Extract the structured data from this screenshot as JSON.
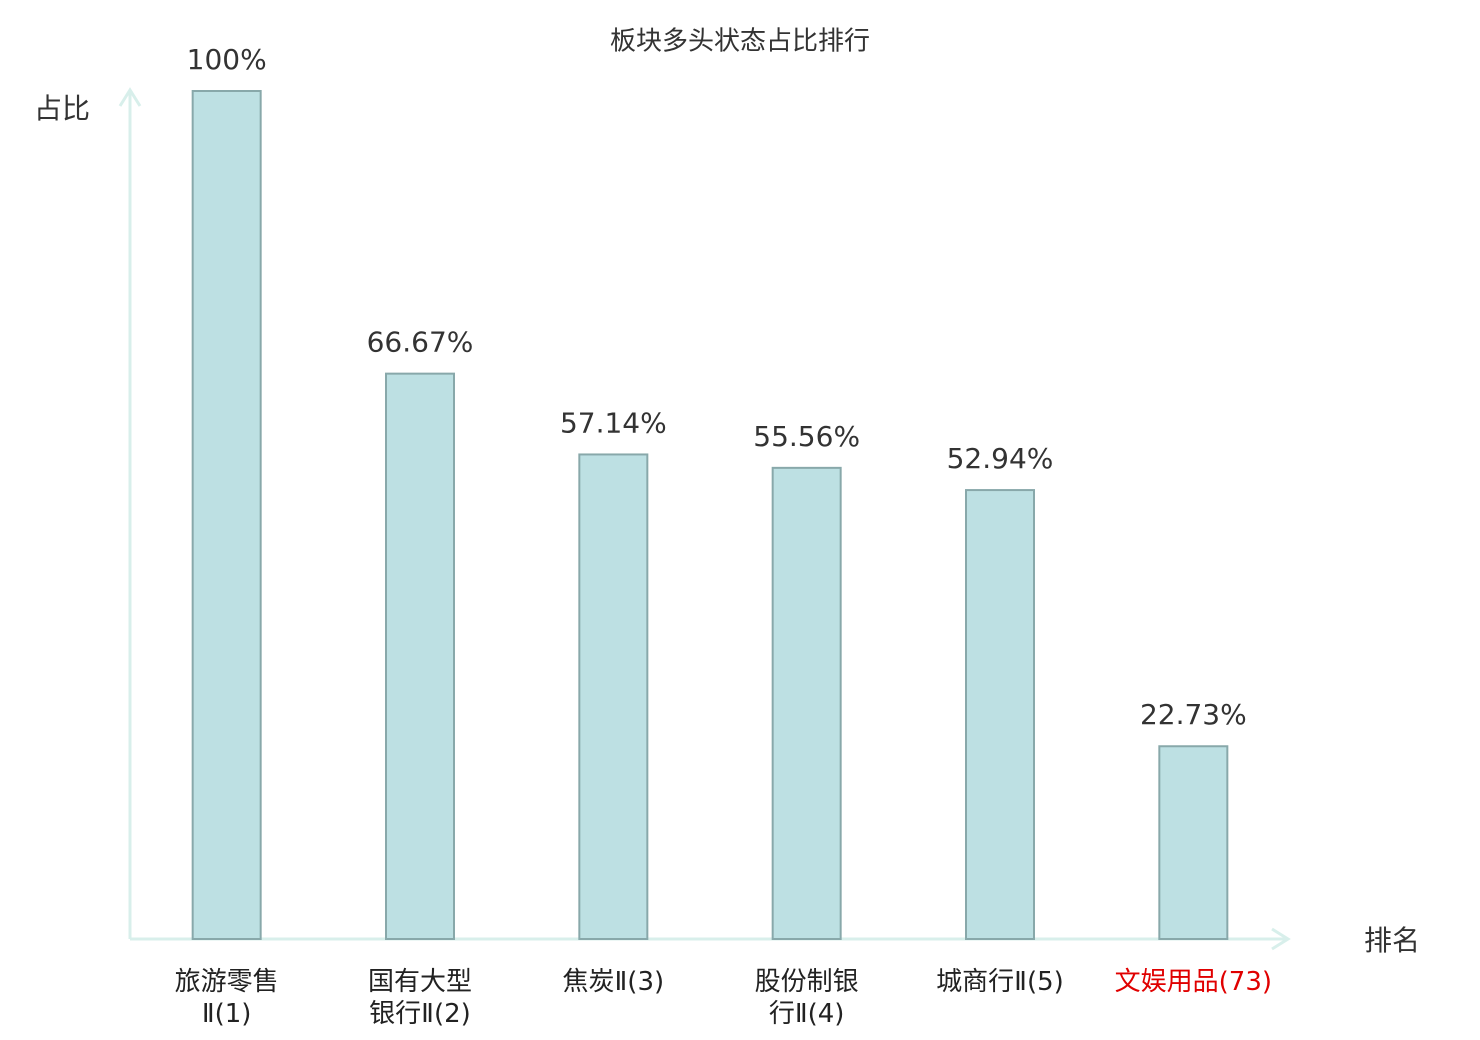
{
  "chart_data": {
    "type": "bar",
    "title": "板块多头状态占比排行",
    "y_label": "占比",
    "x_label": "排名",
    "categories": [
      "旅游零售\nⅡ(1)",
      "国有大型\n银行Ⅱ(2)",
      "焦炭Ⅱ(3)",
      "股份制银\n行Ⅱ(4)",
      "城商行Ⅱ(5)",
      "文娱用品(73)"
    ],
    "category_colors": [
      "#222222",
      "#222222",
      "#222222",
      "#222222",
      "#222222",
      "#e00000"
    ],
    "values": [
      100,
      66.67,
      57.14,
      55.56,
      52.94,
      22.73
    ],
    "value_labels": [
      "100%",
      "66.67%",
      "57.14%",
      "55.56%",
      "52.94%",
      "22.73%"
    ],
    "color": "#bde0e3",
    "edge_color": "#88a8aa",
    "ylim": [
      0,
      100
    ]
  }
}
